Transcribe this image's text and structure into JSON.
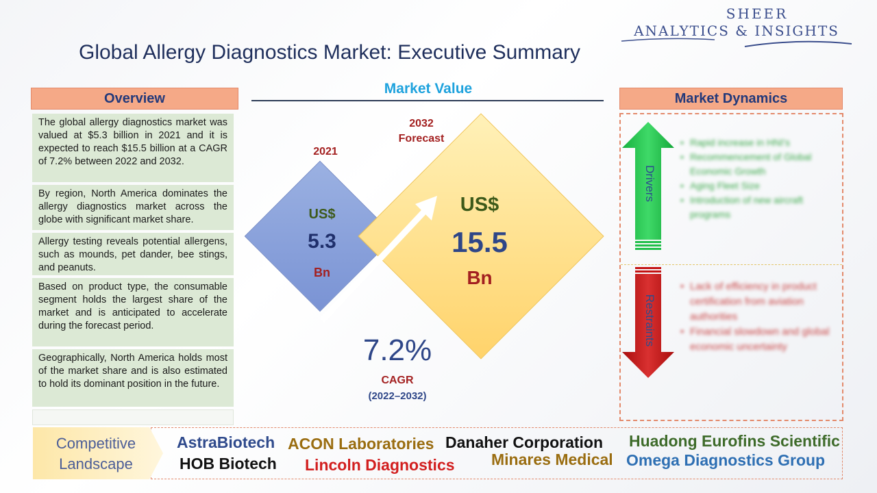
{
  "logo": {
    "line1": "SHEER",
    "line2": "ANALYTICS & INSIGHTS"
  },
  "title": "Global Allergy Diagnostics Market: Executive Summary",
  "overview": {
    "header": "Overview",
    "items": [
      "The global allergy diagnostics market was valued at $5.3 billion in 2021 and it is expected to reach $15.5 billion at a CAGR of 7.2% between 2022 and 2032.",
      "By region, North America dominates the allergy diagnostics market across the globe with significant market share.",
      "Allergy testing reveals potential allergens, such as mounds, pet dander, bee stings, and peanuts.",
      "Based on product type, the consumable segment holds the largest share of the market and is anticipated to accelerate during the forecast period.",
      "Geographically, North America holds most of the market share and is also estimated to hold its dominant position in the future."
    ]
  },
  "market_value": {
    "header": "Market Value",
    "y2021": "2021",
    "y2032_line1": "2032",
    "y2032_line2": "Forecast",
    "small": {
      "currency": "US$",
      "value": "5.3",
      "unit": "Bn"
    },
    "big": {
      "currency": "US$",
      "value": "15.5",
      "unit": "Bn"
    },
    "cagr_value": "7.2%",
    "cagr_label": "CAGR",
    "cagr_period": "(2022–2032)"
  },
  "market_dynamics": {
    "header": "Market Dynamics",
    "drivers_label": "Drivers",
    "restraints_label": "Restraints",
    "drivers": [
      "Rapid increase in HNI's",
      "Recommencement of Global Economic Growth",
      "Aging Fleet Size",
      "Introduction of new aircraft programs"
    ],
    "restraints": [
      "Lack of efficiency in product certification from aviation authorities",
      "Financial slowdown and global economic uncertainty"
    ]
  },
  "competitive": {
    "label_line1": "Competitive",
    "label_line2": "Landscape",
    "companies": [
      {
        "name": "AstraBiotech",
        "color": "#2f4a8c"
      },
      {
        "name": "ACON Laboratories",
        "color": "#9a6d10"
      },
      {
        "name": "Danaher Corporation",
        "color": "#111111"
      },
      {
        "name": "Huadong Eurofins Scientific",
        "color": "#3e6b2a"
      },
      {
        "name": "HOB Biotech",
        "color": "#111111"
      },
      {
        "name": "Lincoln Diagnostics",
        "color": "#d21f1f"
      },
      {
        "name": "Minares Medical",
        "color": "#9a6d10"
      },
      {
        "name": "Omega Diagnostics Group",
        "color": "#2e6fb3"
      }
    ]
  },
  "colors": {
    "accent_blue": "#1ea2dd",
    "header_fill": "#f5a987",
    "overview_fill": "#dce9d5",
    "drivers_arrow": "#1fbf4a",
    "restraints_arrow": "#c41212"
  }
}
